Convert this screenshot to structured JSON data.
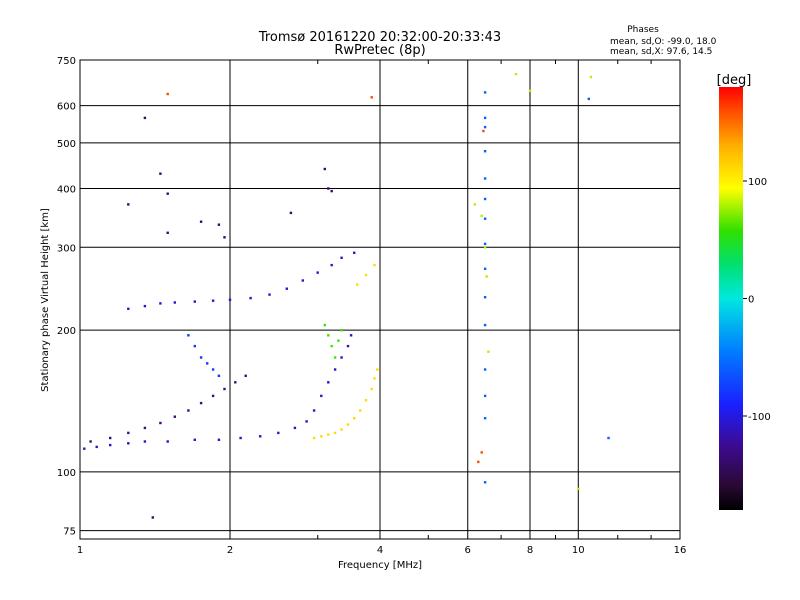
{
  "header": {
    "title_line1": "Tromsø 20161220 20:32:00-20:33:43",
    "title_line2": "RwPretec (8p)"
  },
  "phases_box": {
    "heading": "Phases",
    "line_o": "mean, sd,O: -99.0, 18.0",
    "line_x": "mean, sd,X: 97.6, 14.5"
  },
  "colorbar": {
    "unit_label": "[deg]",
    "tick_labels": [
      "100",
      "0",
      "-100"
    ],
    "tick_values": [
      100,
      0,
      -100
    ],
    "range": [
      -180,
      180
    ]
  },
  "chart_data": {
    "type": "scatter",
    "title": "Tromsø 20161220 20:32:00-20:33:43",
    "subtitle": "RwPretec (8p)",
    "xlabel": "Frequency [MHz]",
    "ylabel": "Stationary phase Virtual Height [km]",
    "x_scale": "log",
    "y_scale": "log",
    "xlim": [
      1,
      16
    ],
    "ylim": [
      72,
      750
    ],
    "x_ticks": [
      1,
      2,
      4,
      6,
      8,
      10,
      16
    ],
    "x_tick_labels": [
      "1",
      "2",
      "4",
      "6",
      "8",
      "10",
      "16"
    ],
    "y_ticks": [
      75,
      100,
      200,
      300,
      400,
      500,
      600,
      750
    ],
    "y_tick_labels": [
      "75",
      "100",
      "200",
      "300",
      "400",
      "500",
      "600",
      "750"
    ],
    "grid": true,
    "color_scale": "phase in degrees (rainbow, -180 to 180)",
    "traces": [
      {
        "name": "",
        "phase": -110,
        "points": [
          [
            1.02,
            112
          ],
          [
            1.08,
            113
          ],
          [
            1.15,
            114
          ],
          [
            1.25,
            115
          ],
          [
            1.35,
            116
          ],
          [
            1.5,
            116
          ],
          [
            1.7,
            117
          ],
          [
            1.9,
            117
          ],
          [
            2.1,
            118
          ],
          [
            2.3,
            119
          ],
          [
            2.5,
            121
          ],
          [
            2.7,
            124
          ],
          [
            2.85,
            128
          ],
          [
            2.95,
            135
          ],
          [
            3.05,
            145
          ],
          [
            3.15,
            155
          ],
          [
            3.25,
            165
          ],
          [
            3.35,
            175
          ],
          [
            3.45,
            185
          ],
          [
            3.5,
            195
          ]
        ]
      },
      {
        "name": "",
        "phase": -130,
        "points": [
          [
            1.05,
            116
          ],
          [
            1.15,
            118
          ],
          [
            1.25,
            121
          ],
          [
            1.35,
            124
          ],
          [
            1.45,
            127
          ],
          [
            1.55,
            131
          ],
          [
            1.65,
            135
          ],
          [
            1.75,
            140
          ],
          [
            1.85,
            145
          ],
          [
            1.95,
            150
          ],
          [
            2.05,
            155
          ],
          [
            2.15,
            160
          ]
        ]
      },
      {
        "name": "",
        "phase": -105,
        "points": [
          [
            1.25,
            222
          ],
          [
            1.35,
            225
          ],
          [
            1.45,
            228
          ],
          [
            1.55,
            229
          ],
          [
            1.7,
            230
          ],
          [
            1.85,
            231
          ],
          [
            2.0,
            232
          ],
          [
            2.2,
            234
          ],
          [
            2.4,
            238
          ],
          [
            2.6,
            245
          ],
          [
            2.8,
            255
          ],
          [
            3.0,
            265
          ],
          [
            3.2,
            275
          ],
          [
            3.35,
            285
          ],
          [
            3.55,
            292
          ]
        ]
      },
      {
        "name": "",
        "phase": 110,
        "points": [
          [
            2.95,
            118
          ],
          [
            3.05,
            119
          ],
          [
            3.15,
            120
          ],
          [
            3.25,
            121
          ],
          [
            3.35,
            123
          ],
          [
            3.45,
            126
          ],
          [
            3.55,
            130
          ],
          [
            3.65,
            135
          ],
          [
            3.75,
            142
          ],
          [
            3.85,
            150
          ],
          [
            3.9,
            158
          ],
          [
            3.95,
            165
          ],
          [
            3.6,
            250
          ],
          [
            3.75,
            262
          ],
          [
            3.9,
            275
          ]
        ]
      },
      {
        "name": "",
        "phase": -80,
        "points": [
          [
            1.65,
            195
          ],
          [
            1.7,
            185
          ],
          [
            1.75,
            175
          ],
          [
            1.8,
            170
          ],
          [
            1.85,
            165
          ],
          [
            1.9,
            160
          ]
        ]
      },
      {
        "name": "",
        "phase": 60,
        "points": [
          [
            3.1,
            205
          ],
          [
            3.15,
            195
          ],
          [
            3.2,
            185
          ],
          [
            3.25,
            175
          ],
          [
            3.3,
            190
          ],
          [
            3.35,
            200
          ]
        ]
      },
      {
        "name": "",
        "phase": -60,
        "points": [
          [
            6.5,
            95
          ],
          [
            6.5,
            130
          ],
          [
            6.5,
            145
          ],
          [
            6.5,
            165
          ],
          [
            6.5,
            205
          ],
          [
            6.5,
            235
          ],
          [
            6.5,
            270
          ],
          [
            6.5,
            305
          ],
          [
            6.5,
            345
          ],
          [
            6.5,
            380
          ],
          [
            6.5,
            420
          ],
          [
            6.5,
            480
          ],
          [
            6.5,
            540
          ],
          [
            6.5,
            565
          ],
          [
            6.5,
            640
          ],
          [
            10.5,
            620
          ],
          [
            11.5,
            118
          ]
        ]
      },
      {
        "name": "",
        "phase": 80,
        "points": [
          [
            6.2,
            370
          ],
          [
            6.4,
            350
          ],
          [
            6.5,
            300
          ],
          [
            6.55,
            260
          ],
          [
            6.6,
            180
          ],
          [
            7.5,
            700
          ],
          [
            8.0,
            645
          ],
          [
            10.0,
            92
          ],
          [
            10.6,
            690
          ]
        ]
      },
      {
        "name": "",
        "phase": -140,
        "points": [
          [
            1.4,
            80
          ],
          [
            1.35,
            565
          ],
          [
            1.45,
            430
          ],
          [
            1.5,
            390
          ],
          [
            1.5,
            322
          ],
          [
            1.75,
            340
          ],
          [
            1.9,
            335
          ],
          [
            1.95,
            315
          ],
          [
            1.25,
            370
          ],
          [
            2.65,
            355
          ],
          [
            3.1,
            440
          ],
          [
            3.15,
            400
          ],
          [
            3.2,
            395
          ]
        ]
      },
      {
        "name": "",
        "phase": 160,
        "points": [
          [
            1.5,
            635
          ],
          [
            3.85,
            625
          ],
          [
            6.45,
            530
          ],
          [
            6.3,
            105
          ],
          [
            6.4,
            110
          ]
        ]
      }
    ]
  }
}
